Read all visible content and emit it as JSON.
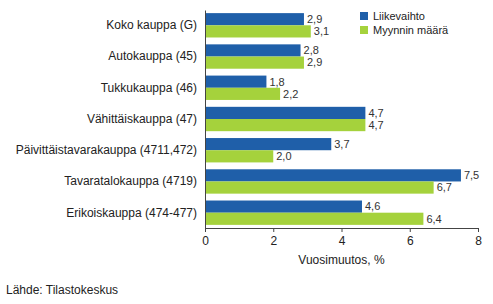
{
  "chart_data": {
    "type": "bar",
    "orientation": "horizontal",
    "categories": [
      "Koko kauppa (G)",
      "Autokauppa (45)",
      "Tukkukauppa (46)",
      "Vähittäiskauppa (47)",
      "Päivittäistavarakauppa (4711,472)",
      "Tavaratalokauppa (4719)",
      "Erikoiskauppa (474-477)"
    ],
    "series": [
      {
        "name": "Liikevaihto",
        "color": "#1f5fa9",
        "values": [
          2.9,
          2.8,
          1.8,
          4.7,
          3.7,
          7.5,
          4.6
        ],
        "value_labels": [
          "2,9",
          "2,8",
          "1,8",
          "4,7",
          "3,7",
          "7,5",
          "4,6"
        ]
      },
      {
        "name": "Myynnin määrä",
        "color": "#a5d23c",
        "values": [
          3.1,
          2.9,
          2.2,
          4.7,
          2.0,
          6.7,
          6.4
        ],
        "value_labels": [
          "3,1",
          "2,9",
          "2,2",
          "4,7",
          "2,0",
          "6,7",
          "6,4"
        ]
      }
    ],
    "x_label": "Vuosimuutos, %",
    "source": "Lähde: Tilastokeskus",
    "xlim": [
      0,
      8
    ],
    "xticks": [
      0,
      2,
      4,
      6,
      8
    ],
    "grid": false,
    "legend": "top-right",
    "data_labels": true
  }
}
